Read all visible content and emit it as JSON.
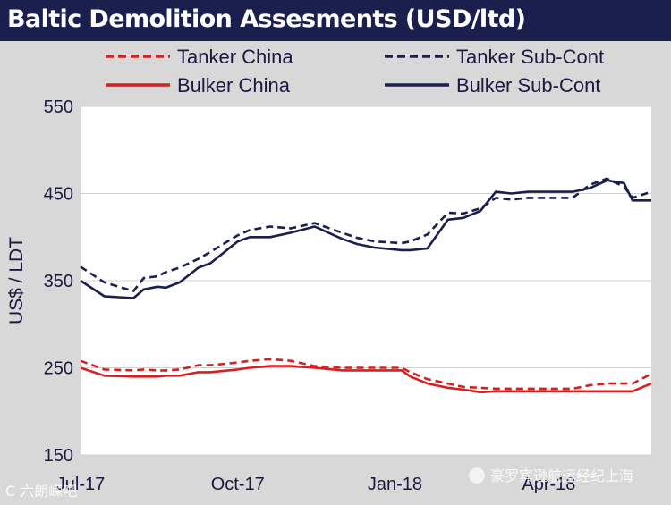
{
  "chart_data": {
    "type": "line",
    "title": "Baltic Demolition Assesments (USD/ltd)",
    "ylabel": "US$ / LDT",
    "xlabel": "",
    "ylim": [
      150,
      550
    ],
    "yticks": [
      150,
      250,
      350,
      450,
      550
    ],
    "x_tick_labels": [
      "Jul-17",
      "Oct-17",
      "Jan-18",
      "Apr-18"
    ],
    "grid": "horizontal",
    "legend_position": "top",
    "x": [
      "2017-07-01",
      "2017-07-15",
      "2017-08-01",
      "2017-08-07",
      "2017-08-15",
      "2017-08-20",
      "2017-08-28",
      "2017-09-08",
      "2017-09-15",
      "2017-10-01",
      "2017-10-08",
      "2017-10-20",
      "2017-11-01",
      "2017-11-15",
      "2017-12-01",
      "2017-12-10",
      "2017-12-20",
      "2018-01-05",
      "2018-01-10",
      "2018-01-20",
      "2018-02-01",
      "2018-02-10",
      "2018-02-20",
      "2018-03-01",
      "2018-03-10",
      "2018-03-20",
      "2018-04-01",
      "2018-04-15",
      "2018-04-25",
      "2018-05-05",
      "2018-05-15",
      "2018-05-20",
      "2018-05-31"
    ],
    "series": [
      {
        "name": "Tanker China",
        "color": "#d42020",
        "style": "dashed",
        "values": [
          258,
          248,
          247,
          248,
          247,
          247,
          248,
          253,
          253,
          256,
          258,
          260,
          258,
          252,
          250,
          250,
          250,
          250,
          245,
          237,
          232,
          228,
          227,
          226,
          226,
          226,
          226,
          226,
          230,
          232,
          232,
          232,
          243
        ]
      },
      {
        "name": "Tanker Sub-Cont",
        "color": "#1b1f4e",
        "style": "dashed",
        "values": [
          366,
          348,
          338,
          353,
          355,
          360,
          365,
          375,
          383,
          402,
          408,
          412,
          410,
          416,
          405,
          399,
          395,
          393,
          395,
          403,
          428,
          427,
          433,
          445,
          443,
          445,
          445,
          445,
          460,
          467,
          458,
          445,
          452
        ]
      },
      {
        "name": "Bulker China",
        "color": "#d42020",
        "style": "solid",
        "values": [
          250,
          241,
          240,
          240,
          240,
          241,
          241,
          245,
          245,
          248,
          250,
          252,
          252,
          250,
          247,
          247,
          247,
          247,
          240,
          232,
          227,
          225,
          222,
          223,
          223,
          223,
          223,
          223,
          223,
          223,
          223,
          223,
          232
        ]
      },
      {
        "name": "Bulker Sub-Cont",
        "color": "#1b1f4e",
        "style": "solid",
        "values": [
          350,
          332,
          330,
          340,
          343,
          342,
          348,
          365,
          370,
          395,
          400,
          400,
          405,
          412,
          398,
          392,
          388,
          385,
          385,
          387,
          420,
          422,
          430,
          452,
          450,
          452,
          452,
          452,
          456,
          465,
          462,
          442,
          442
        ]
      }
    ]
  },
  "watermark": {
    "left": "C 六朗嵘吧",
    "right": "豪罗宾逊航运经纪上海"
  }
}
